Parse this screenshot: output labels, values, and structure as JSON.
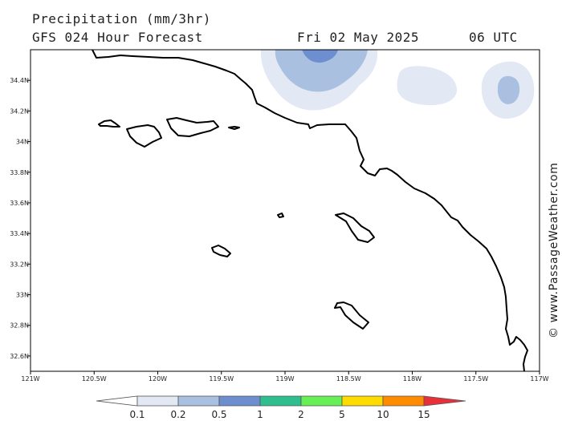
{
  "header": {
    "title": "Precipitation (mm/3hr)",
    "model": "GFS 024 Hour Forecast",
    "date": "Fri 02 May 2025",
    "time": "06 UTC"
  },
  "map": {
    "lon_range": [
      -121,
      -117
    ],
    "lat_range": [
      32.5,
      34.6
    ],
    "lon_ticks": [
      {
        "value": -121,
        "label": "121W"
      },
      {
        "value": -120.5,
        "label": "120.5W"
      },
      {
        "value": -120,
        "label": "120W"
      },
      {
        "value": -119.5,
        "label": "119.5W"
      },
      {
        "value": -119,
        "label": "119W"
      },
      {
        "value": -118.5,
        "label": "118.5W"
      },
      {
        "value": -118,
        "label": "118W"
      },
      {
        "value": -117.5,
        "label": "117.5W"
      },
      {
        "value": -117,
        "label": "117W"
      }
    ],
    "lat_ticks": [
      {
        "value": 34.4,
        "label": "34.4N"
      },
      {
        "value": 34.2,
        "label": "34.2N"
      },
      {
        "value": 34.0,
        "label": "34N"
      },
      {
        "value": 33.8,
        "label": "33.8N"
      },
      {
        "value": 33.6,
        "label": "33.6N"
      },
      {
        "value": 33.4,
        "label": "33.4N"
      },
      {
        "value": 33.2,
        "label": "33.2N"
      },
      {
        "value": 33.0,
        "label": "33N"
      },
      {
        "value": 32.8,
        "label": "32.8N"
      },
      {
        "value": 32.6,
        "label": "32.6N"
      }
    ],
    "watermark": "© www.PassageWeather.com",
    "colors": {
      "land_line": "#000000",
      "frame": "#000000"
    }
  },
  "colorbar": {
    "labels": [
      "0.1",
      "0.2",
      "0.5",
      "1",
      "2",
      "5",
      "10",
      "15"
    ],
    "colors": [
      "#ffffff",
      "#e2e8f4",
      "#a9c0e0",
      "#6d8fd0",
      "#2fbf8f",
      "#66f055",
      "#ffdc00",
      "#ff8c00",
      "#e8303a"
    ]
  }
}
